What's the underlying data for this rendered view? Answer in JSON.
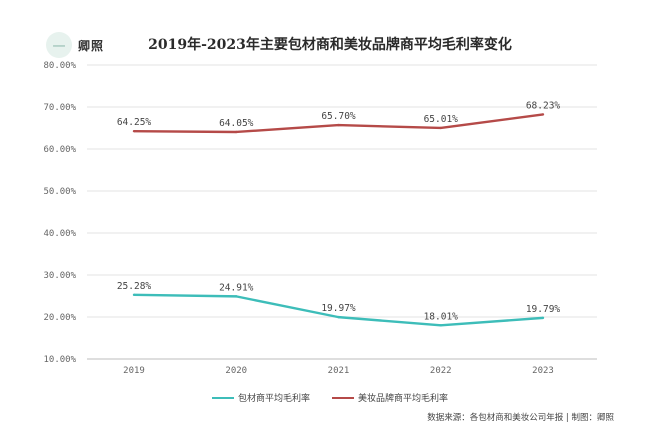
{
  "logo": {
    "glyph": "一",
    "text": "卿照"
  },
  "chart_data": {
    "type": "line",
    "title": "2019年-2023年主要包材商和美妆品牌商平均毛利率变化",
    "categories": [
      "2019",
      "2020",
      "2021",
      "2022",
      "2023"
    ],
    "ylim": [
      10,
      80
    ],
    "yticks": [
      10,
      20,
      30,
      40,
      50,
      60,
      70,
      80
    ],
    "ytick_labels": [
      "10.00%",
      "20.00%",
      "30.00%",
      "40.00%",
      "50.00%",
      "60.00%",
      "70.00%",
      "80.00%"
    ],
    "grid": true,
    "legend_position": "bottom",
    "series": [
      {
        "name": "包材商平均毛利率",
        "color": "#3dbdb9",
        "values": [
          25.28,
          24.91,
          19.97,
          18.01,
          19.79
        ],
        "labels": [
          "25.28%",
          "24.91%",
          "19.97%",
          "18.01%",
          "19.79%"
        ]
      },
      {
        "name": "美妆品牌商平均毛利率",
        "color": "#b54a48",
        "values": [
          64.25,
          64.05,
          65.7,
          65.01,
          68.23
        ],
        "labels": [
          "64.25%",
          "64.05%",
          "65.70%",
          "65.01%",
          "68.23%"
        ]
      }
    ],
    "source": "数据来源：各包材商和美妆公司年报 | 制图：卿照"
  }
}
